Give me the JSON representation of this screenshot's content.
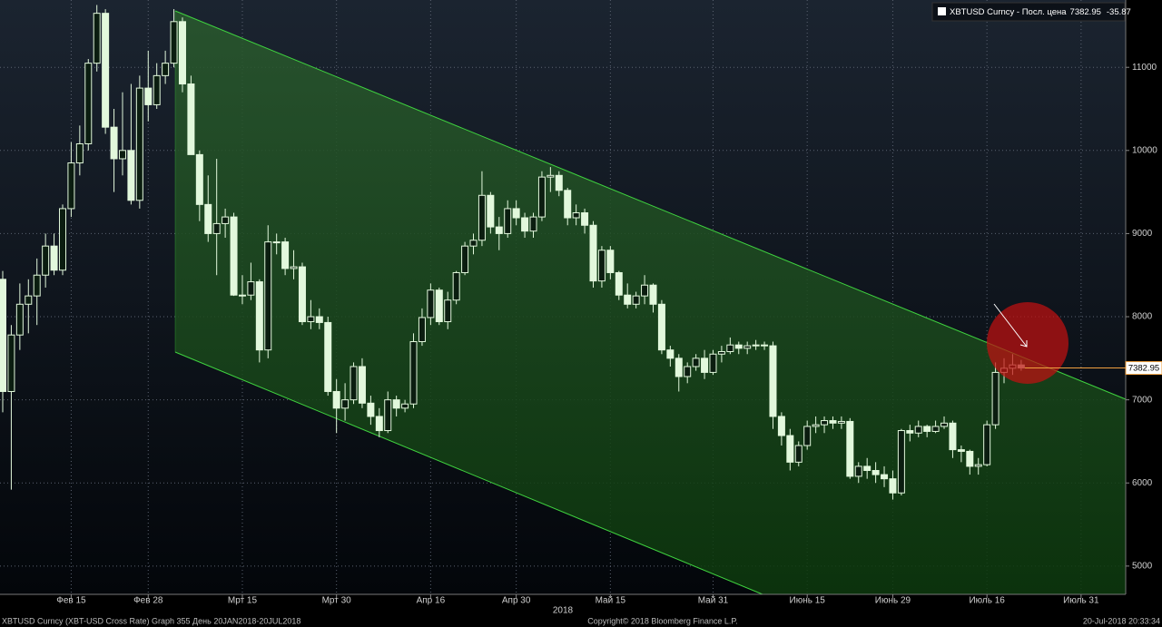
{
  "chart_data": {
    "type": "candlestick",
    "x_label": "2018",
    "footer_left": "XBTUSD Curncy (XBT-USD Cross Rate) Graph 355  День 20JAN2018-20JUL2018",
    "footer_center": "Copyright© 2018 Bloomberg Finance L.P.",
    "footer_right": "20-Jul-2018 20:33:34",
    "ylim": [
      4660,
      11810
    ],
    "yticks": [
      5000,
      6000,
      7000,
      8000,
      9000,
      10000,
      11000
    ],
    "grid": true,
    "legend": "top-right",
    "categories": [
      null,
      null,
      null,
      null,
      null,
      null,
      null,
      null,
      "Фев 15",
      null,
      null,
      null,
      null,
      null,
      null,
      null,
      null,
      "Фев 28",
      null,
      null,
      null,
      null,
      null,
      null,
      null,
      null,
      null,
      null,
      "Мрт 15",
      null,
      null,
      null,
      null,
      null,
      null,
      null,
      null,
      null,
      null,
      "Мрт 30",
      null,
      null,
      null,
      null,
      null,
      null,
      null,
      null,
      null,
      null,
      "Апр 16",
      null,
      null,
      null,
      null,
      null,
      null,
      null,
      null,
      null,
      "Апр 30",
      null,
      null,
      null,
      null,
      null,
      null,
      null,
      null,
      null,
      null,
      "Май 15",
      null,
      null,
      null,
      null,
      null,
      null,
      null,
      null,
      null,
      null,
      null,
      "Май 31",
      null,
      null,
      null,
      null,
      null,
      null,
      null,
      null,
      null,
      null,
      "Июнь 15",
      null,
      null,
      null,
      null,
      null,
      null,
      null,
      null,
      null,
      "Июнь 29",
      null,
      null,
      null,
      null,
      null,
      null,
      null,
      null,
      null,
      null,
      "Июль 16",
      null,
      null,
      null,
      null,
      null,
      null,
      null,
      null,
      null,
      null,
      "Июль 31",
      null,
      null,
      null,
      null
    ],
    "series": [
      {
        "name": "XBTUSD Curncy - Посл. цена",
        "color": "#e2f8dc",
        "change": -35.87,
        "open": [
          8450,
          7100,
          7780,
          8150,
          8250,
          8500,
          8850,
          8560,
          9300,
          9850,
          10080,
          11050,
          11650,
          10280,
          9900,
          10000,
          9400,
          10750,
          10550,
          10900,
          11050,
          11550,
          10800,
          9950,
          9350,
          9000,
          9120,
          9200,
          8260,
          8260,
          8420,
          7600,
          8900,
          8900,
          8580,
          8600,
          7940,
          8000,
          7930,
          7100,
          6900,
          7000,
          7400,
          6960,
          6800,
          6630,
          7000,
          6900,
          6950,
          7700,
          7990,
          8320,
          7940,
          8200,
          8530,
          8850,
          8920,
          9460,
          9080,
          9000,
          9300,
          9190,
          9030,
          9200,
          9680,
          9700,
          9520,
          9190,
          9250,
          9100,
          8430,
          8800,
          8530,
          8260,
          8150,
          8250,
          8380,
          8150,
          7600,
          7500,
          7280,
          7400,
          7500,
          7330,
          7550,
          7580,
          7660,
          7620,
          7650,
          7660,
          7650,
          6800,
          6570,
          6250,
          6450,
          6680,
          6700,
          6750,
          6720,
          6740,
          6080,
          6200,
          6150,
          6100,
          6050,
          5880,
          6630,
          6600,
          6680,
          6620,
          6680,
          6720,
          6400,
          6380,
          6200,
          6220,
          6700,
          7330,
          7380,
          7420,
          null,
          null,
          null,
          null,
          null,
          null,
          null,
          null,
          null,
          null,
          null
        ],
        "high": [
          8550,
          7900,
          8400,
          8450,
          8700,
          9000,
          9000,
          9350,
          10100,
          10300,
          11100,
          11750,
          11700,
          10500,
          10700,
          10800,
          10900,
          11200,
          11050,
          11200,
          11700,
          11600,
          10900,
          10000,
          9700,
          9900,
          9300,
          9250,
          8500,
          8650,
          8450,
          9100,
          9000,
          8950,
          8800,
          8650,
          8200,
          8100,
          8000,
          7250,
          7200,
          7450,
          7500,
          7050,
          6900,
          7100,
          7050,
          7000,
          7800,
          8100,
          8400,
          8350,
          8300,
          8550,
          8900,
          9000,
          9750,
          9500,
          9200,
          9400,
          9400,
          9250,
          9250,
          9750,
          9800,
          9750,
          9550,
          9350,
          9300,
          9150,
          8850,
          8850,
          8550,
          8400,
          8300,
          8500,
          8400,
          8200,
          7650,
          7550,
          7450,
          7550,
          7600,
          7600,
          7650,
          7750,
          7700,
          7700,
          7720,
          7700,
          7700,
          6850,
          6650,
          6500,
          6750,
          6800,
          6800,
          6800,
          6800,
          6780,
          6250,
          6300,
          6250,
          6200,
          6150,
          6650,
          6700,
          6750,
          6700,
          6750,
          6800,
          6750,
          6450,
          6400,
          6300,
          6750,
          7450,
          7500,
          7550,
          7480,
          null,
          null,
          null,
          null,
          null,
          null,
          null,
          null,
          null,
          null,
          null
        ],
        "low": [
          6850,
          5920,
          7600,
          7800,
          7900,
          8350,
          8500,
          8500,
          9200,
          9700,
          10000,
          10950,
          10200,
          9500,
          9700,
          9350,
          9300,
          10350,
          10500,
          10800,
          11000,
          10700,
          9950,
          9150,
          8900,
          8500,
          8950,
          8250,
          8150,
          8200,
          7450,
          7500,
          8750,
          8500,
          8450,
          7900,
          7850,
          7850,
          7050,
          6600,
          6750,
          6950,
          6900,
          6700,
          6550,
          6600,
          6800,
          6850,
          6900,
          7650,
          7900,
          7900,
          7850,
          8150,
          8500,
          8750,
          8850,
          9000,
          8800,
          8950,
          9100,
          8950,
          8950,
          9150,
          9500,
          9450,
          9100,
          9100,
          9000,
          8350,
          8350,
          8450,
          8200,
          8100,
          8100,
          8150,
          8050,
          7550,
          7400,
          7100,
          7200,
          7350,
          7250,
          7300,
          7450,
          7550,
          7550,
          7550,
          7600,
          7600,
          6650,
          6450,
          6150,
          6200,
          6400,
          6600,
          6600,
          6650,
          6650,
          6050,
          6000,
          6050,
          6000,
          5950,
          5800,
          5850,
          6500,
          6550,
          6550,
          6600,
          6650,
          6300,
          6250,
          6100,
          6100,
          6200,
          6650,
          7200,
          7300,
          7350,
          null,
          null,
          null,
          null,
          null,
          null,
          null,
          null,
          null,
          null,
          null
        ],
        "close": [
          7100,
          7780,
          8150,
          8250,
          8500,
          8850,
          8560,
          9300,
          9850,
          10080,
          11050,
          11650,
          10280,
          9900,
          10000,
          9400,
          10750,
          10550,
          10900,
          11050,
          11550,
          10800,
          9950,
          9350,
          9000,
          9120,
          9200,
          8260,
          8260,
          8420,
          7600,
          8900,
          8900,
          8580,
          8600,
          7940,
          8000,
          7930,
          7100,
          6900,
          7000,
          7400,
          6960,
          6800,
          6630,
          7000,
          6900,
          6950,
          7700,
          7990,
          8320,
          7940,
          8200,
          8530,
          8850,
          8920,
          9460,
          9080,
          9000,
          9300,
          9190,
          9030,
          9200,
          9680,
          9700,
          9520,
          9190,
          9250,
          9100,
          8430,
          8800,
          8530,
          8260,
          8150,
          8250,
          8380,
          8150,
          7600,
          7500,
          7280,
          7400,
          7500,
          7330,
          7550,
          7580,
          7660,
          7620,
          7650,
          7660,
          7650,
          6800,
          6570,
          6250,
          6450,
          6680,
          6700,
          6750,
          6720,
          6740,
          6080,
          6200,
          6150,
          6100,
          6050,
          5880,
          6630,
          6600,
          6680,
          6620,
          6680,
          6720,
          6400,
          6380,
          6200,
          6220,
          6700,
          7330,
          7380,
          7420,
          7382.95,
          null,
          null,
          null,
          null,
          null,
          null,
          null,
          null,
          null,
          null,
          null
        ]
      }
    ]
  }
}
